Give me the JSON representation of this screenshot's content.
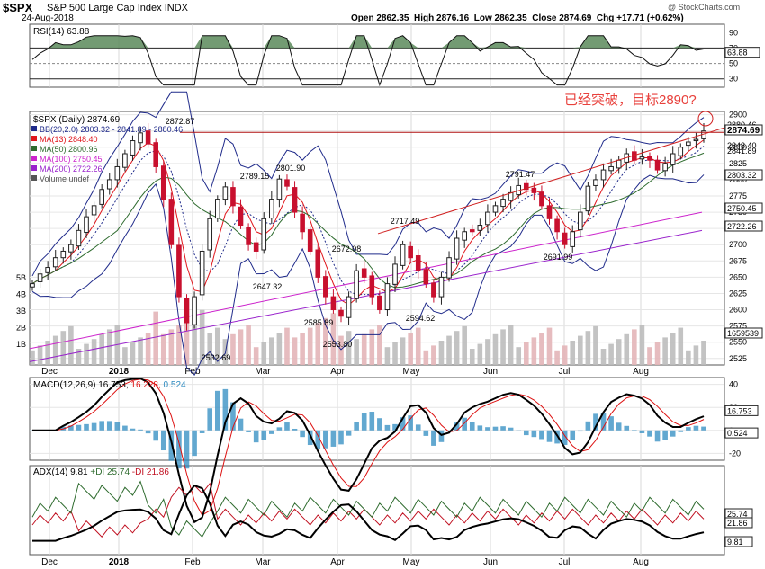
{
  "header": {
    "symbol": "$SPX",
    "name": "S&P 500 Large Cap Index",
    "exchange": "INDX",
    "date": "24-Aug-2018",
    "ohlc_text": "Open 2862.35  High 2876.16  Low 2862.35  Close 2874.69  Chg +17.71 (+0.62%)",
    "watermark": "@ StockCharts.com"
  },
  "annotation": {
    "text": "已经突破，目标2890?",
    "color": "#e8413c"
  },
  "colors": {
    "up": "#222222",
    "down": "#c8102e",
    "bb": "#1f2a8a",
    "ma13": "#e0151b",
    "ma50": "#2e6b2e",
    "ma100": "#cc22cc",
    "ma200": "#9922cc",
    "volume": "#c2c2c2",
    "rsi_fill": "#5a8a5a",
    "macd_hist": "#2e8bc0"
  },
  "x_axis": {
    "months": [
      "Dec",
      "2018",
      "Feb",
      "Mar",
      "Apr",
      "May",
      "Jun",
      "Jul",
      "Aug"
    ]
  },
  "rsi": {
    "label": "RSI(14) 63.88",
    "ticks": [
      "90",
      "70",
      "50",
      "30"
    ],
    "last_label": "63.88"
  },
  "price_panel": {
    "legend": [
      {
        "text": "$SPX (Daily) 2874.69",
        "color": "#000000"
      },
      {
        "text": "BB(20,2.0) 2803.32 - 2841.89 - 2880.46",
        "color": "#1f2a8a"
      },
      {
        "text": "MA(13) 2848.40",
        "color": "#e0151b"
      },
      {
        "text": "MA(50) 2800.96",
        "color": "#2e6b2e"
      },
      {
        "text": "MA(100) 2750.45",
        "color": "#cc22cc"
      },
      {
        "text": "MA(200) 2722.26",
        "color": "#9922cc"
      },
      {
        "text": "Volume undef",
        "color": "#555555"
      }
    ],
    "y_ticks": [
      "2900",
      "2875",
      "2850",
      "2825",
      "2800",
      "2775",
      "2750",
      "2725",
      "2700",
      "2675",
      "2650",
      "2625",
      "2600",
      "2575",
      "2550",
      "2525"
    ],
    "volume_ticks": [
      "5B",
      "4B",
      "3B",
      "2B",
      "1B"
    ],
    "right_labels": [
      {
        "text": "2880.46",
        "boxed": false
      },
      {
        "text": "2874.69",
        "boxed": true
      },
      {
        "text": "2848.40",
        "boxed": false
      },
      {
        "text": "2841.89",
        "boxed": false
      },
      {
        "text": "2803.32",
        "boxed": true
      },
      {
        "text": "2750.45",
        "boxed": true
      },
      {
        "text": "2722.26",
        "boxed": true
      },
      {
        "text": "1659539",
        "boxed": true
      }
    ],
    "point_labels": [
      "2872.87",
      "2801.90",
      "2789.15",
      "2791.47",
      "2717.49",
      "2672.08",
      "2647.32",
      "2691.99",
      "2585.89",
      "2594.62",
      "2553.80",
      "2532.69"
    ]
  },
  "macd": {
    "label_prefix": "MACD(12,26,9)",
    "macd": "16.753",
    "signal": "16.228",
    "hist": "0.524",
    "ticks": [
      "40",
      "20",
      "0",
      "-20"
    ],
    "last_labels": [
      "16.753",
      "0.524"
    ]
  },
  "adx": {
    "label_prefix": "ADX(14)",
    "adx": "9.81",
    "pdi": "+DI 25.74",
    "mdi": "-DI 21.86",
    "last_labels": [
      "25.74",
      "21.86",
      "9.81"
    ]
  },
  "chart_data": {
    "type": "candlestick",
    "title": "$SPX S&P 500 Large Cap Index Daily",
    "last": {
      "open": 2862.35,
      "high": 2876.16,
      "low": 2862.35,
      "close": 2874.69,
      "chg": 17.71,
      "chg_pct": 0.62
    },
    "ylim": [
      2515,
      2905
    ],
    "indicators": {
      "bb_lower": 2803.32,
      "bb_mid": 2841.89,
      "bb_upper": 2880.46,
      "ma13": 2848.4,
      "ma50": 2800.96,
      "ma100": 2750.45,
      "ma200": 2722.26,
      "rsi14": 63.88,
      "macd": 16.753,
      "macd_signal": 16.228,
      "macd_hist": 0.524,
      "adx": 9.81,
      "plus_di": 25.74,
      "minus_di": 21.86
    },
    "labeled_points": [
      {
        "label": "2872.87",
        "value": 2872.87,
        "month": "Jan"
      },
      {
        "label": "2532.69",
        "value": 2532.69,
        "month": "Feb"
      },
      {
        "label": "2789.15",
        "value": 2789.15,
        "month": "Feb"
      },
      {
        "label": "2801.90",
        "value": 2801.9,
        "month": "Mar"
      },
      {
        "label": "2647.32",
        "value": 2647.32,
        "month": "Mar"
      },
      {
        "label": "2585.89",
        "value": 2585.89,
        "month": "Mar"
      },
      {
        "label": "2553.80",
        "value": 2553.8,
        "month": "Apr"
      },
      {
        "label": "2672.08",
        "value": 2672.08,
        "month": "Apr"
      },
      {
        "label": "2717.49",
        "value": 2717.49,
        "month": "Apr"
      },
      {
        "label": "2594.62",
        "value": 2594.62,
        "month": "May"
      },
      {
        "label": "2791.47",
        "value": 2791.47,
        "month": "Jun"
      },
      {
        "label": "2691.99",
        "value": 2691.99,
        "month": "Jul"
      }
    ],
    "close_path": [
      2640,
      2655,
      2665,
      2680,
      2690,
      2700,
      2722,
      2743,
      2760,
      2785,
      2800,
      2820,
      2840,
      2860,
      2872,
      2855,
      2820,
      2770,
      2700,
      2620,
      2580,
      2620,
      2690,
      2740,
      2770,
      2789,
      2760,
      2730,
      2700,
      2690,
      2740,
      2770,
      2801,
      2790,
      2750,
      2720,
      2690,
      2650,
      2620,
      2600,
      2590,
      2620,
      2660,
      2650,
      2620,
      2600,
      2640,
      2670,
      2700,
      2680,
      2660,
      2640,
      2620,
      2650,
      2680,
      2710,
      2720,
      2720,
      2730,
      2750,
      2760,
      2770,
      2780,
      2791,
      2785,
      2780,
      2760,
      2740,
      2720,
      2700,
      2720,
      2750,
      2790,
      2800,
      2815,
      2820,
      2830,
      2840,
      2830,
      2835,
      2830,
      2815,
      2825,
      2840,
      2850,
      2858,
      2862,
      2875
    ],
    "resistance_level": 2872.87,
    "target": 2890
  }
}
